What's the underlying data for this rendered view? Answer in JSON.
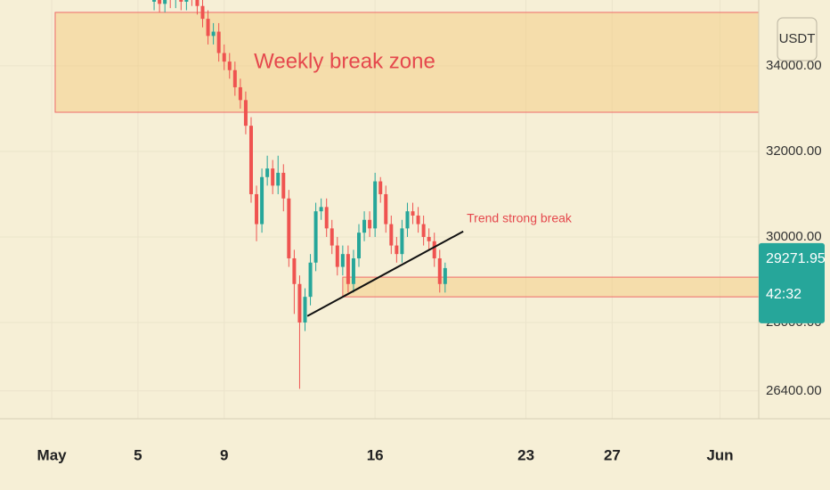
{
  "chart_data": {
    "type": "candlestick",
    "x": [
      5.75,
      6,
      6.25,
      6.5,
      6.75,
      7,
      7.25,
      7.5,
      7.75,
      8,
      8.25,
      8.5,
      8.75,
      9,
      9.25,
      9.5,
      9.75,
      10,
      10.25,
      10.5,
      10.75,
      11,
      11.25,
      11.5,
      11.75,
      12,
      12.25,
      12.5,
      12.75,
      13,
      13.25,
      13.5,
      13.75,
      14,
      14.25,
      14.5,
      14.75,
      15,
      15.25,
      15.5,
      15.75,
      16,
      16.25,
      16.5,
      16.75,
      17,
      17.25,
      17.5,
      17.75,
      18,
      18.25,
      18.5,
      18.75,
      19,
      19.25
    ],
    "open": [
      35500,
      35600,
      35450,
      35700,
      35550,
      35650,
      35500,
      35750,
      35600,
      35400,
      35100,
      34700,
      34800,
      34300,
      34100,
      33900,
      33500,
      33200,
      32600,
      31000,
      30300,
      31400,
      31600,
      31200,
      31500,
      30900,
      29500,
      28900,
      28000,
      28600,
      29400,
      30600,
      30700,
      30200,
      29800,
      29300,
      29600,
      28900,
      29500,
      30100,
      30400,
      30200,
      31300,
      31000,
      30300,
      29800,
      29600,
      30200,
      30600,
      30500,
      30300,
      30000,
      29900,
      29500,
      28900
    ],
    "high": [
      35800,
      35800,
      35900,
      35900,
      35850,
      35850,
      35950,
      35950,
      35800,
      35600,
      35300,
      35000,
      35000,
      34500,
      34300,
      34100,
      33700,
      33400,
      32800,
      31200,
      31600,
      31900,
      31800,
      31900,
      31700,
      31100,
      29700,
      29100,
      28800,
      29600,
      30800,
      30900,
      30900,
      30400,
      30000,
      29800,
      29800,
      29700,
      30300,
      30600,
      30600,
      31500,
      31400,
      31200,
      30500,
      30000,
      30400,
      30800,
      30800,
      30700,
      30500,
      30200,
      30100,
      29700,
      29400
    ],
    "low": [
      35300,
      35250,
      35250,
      35350,
      35350,
      35300,
      35300,
      35400,
      35200,
      34900,
      34500,
      34500,
      34100,
      33900,
      33700,
      33300,
      33000,
      32400,
      30800,
      29900,
      30100,
      31200,
      31000,
      31000,
      30600,
      29300,
      28200,
      26450,
      27800,
      28400,
      29200,
      30400,
      30000,
      29600,
      29100,
      29100,
      28700,
      28700,
      29300,
      29900,
      30000,
      30000,
      30800,
      30100,
      29600,
      29400,
      29400,
      30000,
      30300,
      30100,
      29800,
      29700,
      29300,
      28700,
      28700
    ],
    "close": [
      35600,
      35450,
      35700,
      35550,
      35650,
      35500,
      35750,
      35600,
      35400,
      35100,
      34700,
      34800,
      34300,
      34100,
      33900,
      33500,
      33200,
      32600,
      31000,
      30300,
      31400,
      31600,
      31200,
      31500,
      30900,
      29500,
      28900,
      28000,
      28600,
      29400,
      30600,
      30700,
      30200,
      29800,
      29300,
      29600,
      28900,
      29500,
      30100,
      30400,
      30200,
      31300,
      31000,
      30300,
      29800,
      29600,
      30200,
      30600,
      30500,
      30300,
      30000,
      29900,
      29500,
      28900,
      29271.95
    ],
    "up_color": "#26a69a",
    "down_color": "#ef5350",
    "xlim": [
      -1.4,
      33.8
    ],
    "ylim": [
      25750,
      35540
    ],
    "xticks": [
      {
        "value": 1,
        "label": "May"
      },
      5,
      9,
      16,
      23,
      27,
      {
        "value": 32,
        "label": "Jun"
      }
    ],
    "yticks": [
      {
        "value": 26400,
        "label": "26400.00"
      },
      {
        "value": 28000,
        "label": "28000.00"
      },
      {
        "value": 30000,
        "label": "30000.00"
      },
      {
        "value": 32000,
        "label": "32000.00"
      },
      {
        "value": 34000,
        "label": "34000.00"
      }
    ],
    "grid": true,
    "zones": [
      {
        "label": "Weekly break zone",
        "x_start": 1.16,
        "ylim": [
          32915,
          35250
        ]
      },
      {
        "x_start": 14.5,
        "ylim": [
          28600,
          29060
        ]
      }
    ],
    "trend_line": {
      "x": [
        12.86,
        20.09
      ],
      "y": [
        28150,
        30130
      ],
      "label": "Trend strong break"
    },
    "currency": "USDT",
    "countdown": "42:32"
  }
}
